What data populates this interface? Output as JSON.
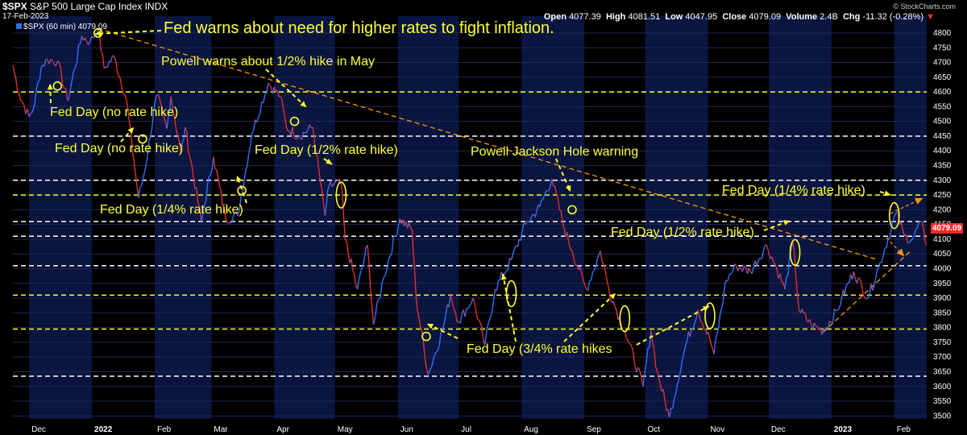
{
  "header": {
    "symbol": "$SPX",
    "name": "S&P 500 Large Cap Index",
    "exchange": "INDX",
    "date": "17-Feb-2023",
    "legend": "$SPX (60 min) 4079.09",
    "open_label": "Open",
    "open": "4077.39",
    "high_label": "High",
    "high": "4081.51",
    "low_label": "Low",
    "low": "4047.95",
    "close_label": "Close",
    "close": "4079.09",
    "volume_label": "Volume",
    "volume": "2.4B",
    "chg_label": "Chg",
    "chg": "-11.32 (-0.28%)",
    "watermark": "© StockCharts.com",
    "last_price": "4079.09"
  },
  "annotations": {
    "a1": "Fed warns about need for higher rates to fight inflation.",
    "a2": "Powell warns about 1/2% hike in May",
    "a3": "Fed Day (no rate hike)",
    "a4": "Fed Day (no rate hike)",
    "a5": "Fed Day (1/2% rate hike)",
    "a6": "Fed Day (1/4% rate hike)",
    "a7": "Powell Jackson Hole warning",
    "a8": "Fed Day (1/4% rate hike)",
    "a9": "Fed Day (1/2% rate hike)",
    "a10": "Fed Day (3/4% rate hikes"
  },
  "colors": {
    "background": "#000000",
    "band": "#0a1540",
    "up": "#2f6fff",
    "down": "#e03030",
    "annotation": "#ffff33",
    "trendline": "#ff9900",
    "support_yellow": "#ffff33",
    "support_white": "#ffffff"
  },
  "chart_data": {
    "type": "line",
    "title": "S&P 500 Large Cap Index (60 min)",
    "ylim": [
      3490,
      4830
    ],
    "y_ticks": [
      3500,
      3550,
      3600,
      3650,
      3700,
      3750,
      3800,
      3850,
      3900,
      3950,
      4000,
      4050,
      4100,
      4150,
      4200,
      4250,
      4300,
      4350,
      4400,
      4450,
      4500,
      4550,
      4600,
      4650,
      4700,
      4750,
      4800
    ],
    "x_labels": [
      "Dec",
      "2022",
      "Feb",
      "Mar",
      "Apr",
      "May",
      "Jun",
      "Jul",
      "Aug",
      "Sep",
      "Oct",
      "Nov",
      "Dec",
      "2023",
      "Feb"
    ],
    "x_label_dates": [
      "2021-12-01",
      "2022-01-01",
      "2022-02-01",
      "2022-03-01",
      "2022-04-01",
      "2022-05-01",
      "2022-06-01",
      "2022-07-01",
      "2022-08-01",
      "2022-09-01",
      "2022-10-01",
      "2022-11-01",
      "2022-12-01",
      "2023-01-01",
      "2023-02-01"
    ],
    "xlim": [
      "2021-11-23",
      "2023-02-17"
    ],
    "series": [
      {
        "name": "$SPX",
        "points": [
          [
            "2021-11-23",
            4690
          ],
          [
            "2021-11-26",
            4595
          ],
          [
            "2021-12-01",
            4515
          ],
          [
            "2021-12-03",
            4540
          ],
          [
            "2021-12-07",
            4685
          ],
          [
            "2021-12-10",
            4710
          ],
          [
            "2021-12-15",
            4705
          ],
          [
            "2021-12-20",
            4570
          ],
          [
            "2021-12-27",
            4790
          ],
          [
            "2021-12-31",
            4770
          ],
          [
            "2022-01-04",
            4815
          ],
          [
            "2022-01-07",
            4680
          ],
          [
            "2022-01-12",
            4720
          ],
          [
            "2022-01-18",
            4575
          ],
          [
            "2022-01-24",
            4240
          ],
          [
            "2022-01-27",
            4330
          ],
          [
            "2022-02-02",
            4590
          ],
          [
            "2022-02-07",
            4475
          ],
          [
            "2022-02-09",
            4585
          ],
          [
            "2022-02-14",
            4390
          ],
          [
            "2022-02-16",
            4480
          ],
          [
            "2022-02-24",
            4160
          ],
          [
            "2022-03-02",
            4380
          ],
          [
            "2022-03-08",
            4170
          ],
          [
            "2022-03-14",
            4180
          ],
          [
            "2022-03-21",
            4460
          ],
          [
            "2022-03-29",
            4630
          ],
          [
            "2022-04-04",
            4585
          ],
          [
            "2022-04-07",
            4480
          ],
          [
            "2022-04-13",
            4450
          ],
          [
            "2022-04-20",
            4480
          ],
          [
            "2022-04-26",
            4180
          ],
          [
            "2022-04-28",
            4280
          ],
          [
            "2022-05-04",
            4290
          ],
          [
            "2022-05-06",
            4100
          ],
          [
            "2022-05-12",
            3930
          ],
          [
            "2022-05-17",
            4080
          ],
          [
            "2022-05-20",
            3810
          ],
          [
            "2022-05-25",
            3970
          ],
          [
            "2022-06-02",
            4170
          ],
          [
            "2022-06-08",
            4130
          ],
          [
            "2022-06-10",
            3900
          ],
          [
            "2022-06-16",
            3640
          ],
          [
            "2022-06-23",
            3790
          ],
          [
            "2022-06-27",
            3910
          ],
          [
            "2022-07-01",
            3820
          ],
          [
            "2022-07-08",
            3900
          ],
          [
            "2022-07-14",
            3740
          ],
          [
            "2022-07-19",
            3930
          ],
          [
            "2022-07-27",
            4030
          ],
          [
            "2022-08-03",
            4150
          ],
          [
            "2022-08-10",
            4210
          ],
          [
            "2022-08-16",
            4305
          ],
          [
            "2022-08-22",
            4140
          ],
          [
            "2022-08-26",
            4060
          ],
          [
            "2022-09-02",
            3930
          ],
          [
            "2022-09-09",
            4060
          ],
          [
            "2022-09-13",
            3935
          ],
          [
            "2022-09-16",
            3875
          ],
          [
            "2022-09-21",
            3790
          ],
          [
            "2022-09-30",
            3600
          ],
          [
            "2022-10-04",
            3790
          ],
          [
            "2022-10-07",
            3650
          ],
          [
            "2022-10-13",
            3495
          ],
          [
            "2022-10-21",
            3740
          ],
          [
            "2022-10-27",
            3860
          ],
          [
            "2022-11-02",
            3760
          ],
          [
            "2022-11-04",
            3710
          ],
          [
            "2022-11-10",
            3960
          ],
          [
            "2022-11-15",
            4010
          ],
          [
            "2022-11-22",
            3990
          ],
          [
            "2022-11-30",
            4080
          ],
          [
            "2022-12-05",
            4000
          ],
          [
            "2022-12-09",
            3930
          ],
          [
            "2022-12-13",
            4090
          ],
          [
            "2022-12-16",
            3860
          ],
          [
            "2022-12-22",
            3810
          ],
          [
            "2022-12-28",
            3790
          ],
          [
            "2023-01-04",
            3860
          ],
          [
            "2023-01-06",
            3900
          ],
          [
            "2023-01-12",
            3990
          ],
          [
            "2023-01-19",
            3900
          ],
          [
            "2023-01-25",
            4020
          ],
          [
            "2023-02-02",
            4190
          ],
          [
            "2023-02-06",
            4110
          ],
          [
            "2023-02-10",
            4100
          ],
          [
            "2023-02-14",
            4160
          ],
          [
            "2023-02-17",
            4079.09
          ]
        ]
      }
    ],
    "support_lines": [
      {
        "value": 4600,
        "color": "yellow"
      },
      {
        "value": 4450,
        "color": "white"
      },
      {
        "value": 4300,
        "color": "white"
      },
      {
        "value": 4250,
        "color": "yellow"
      },
      {
        "value": 4160,
        "color": "white"
      },
      {
        "value": 4110,
        "color": "white"
      },
      {
        "value": 4010,
        "color": "white"
      },
      {
        "value": 3910,
        "color": "yellow"
      },
      {
        "value": 3795,
        "color": "yellow"
      },
      {
        "value": 3635,
        "color": "white"
      }
    ],
    "trendlines": [
      {
        "from": [
          "2022-01-04",
          4815
        ],
        "to": [
          "2023-01-24",
          4030
        ],
        "style": "dashed"
      },
      {
        "from": [
          "2022-12-28",
          3785
        ],
        "to": [
          "2023-02-09",
          4060
        ],
        "style": "dashed"
      }
    ],
    "event_markers": [
      {
        "date": "2021-12-15",
        "value": 4620,
        "shape": "circle"
      },
      {
        "date": "2022-01-04",
        "value": 4800,
        "shape": "circle"
      },
      {
        "date": "2022-01-26",
        "value": 4440,
        "shape": "circle"
      },
      {
        "date": "2022-03-16",
        "value": 4265,
        "shape": "circle"
      },
      {
        "date": "2022-04-11",
        "value": 4500,
        "shape": "circle"
      },
      {
        "date": "2022-05-04",
        "value": 4250,
        "shape": "ellipse"
      },
      {
        "date": "2022-06-15",
        "value": 3770,
        "shape": "circle"
      },
      {
        "date": "2022-07-27",
        "value": 3915,
        "shape": "ellipse"
      },
      {
        "date": "2022-08-26",
        "value": 4200,
        "shape": "circle"
      },
      {
        "date": "2022-09-21",
        "value": 3830,
        "shape": "ellipse"
      },
      {
        "date": "2022-11-02",
        "value": 3840,
        "shape": "ellipse"
      },
      {
        "date": "2022-12-14",
        "value": 4055,
        "shape": "ellipse"
      },
      {
        "date": "2023-02-01",
        "value": 4180,
        "shape": "ellipse"
      }
    ]
  }
}
